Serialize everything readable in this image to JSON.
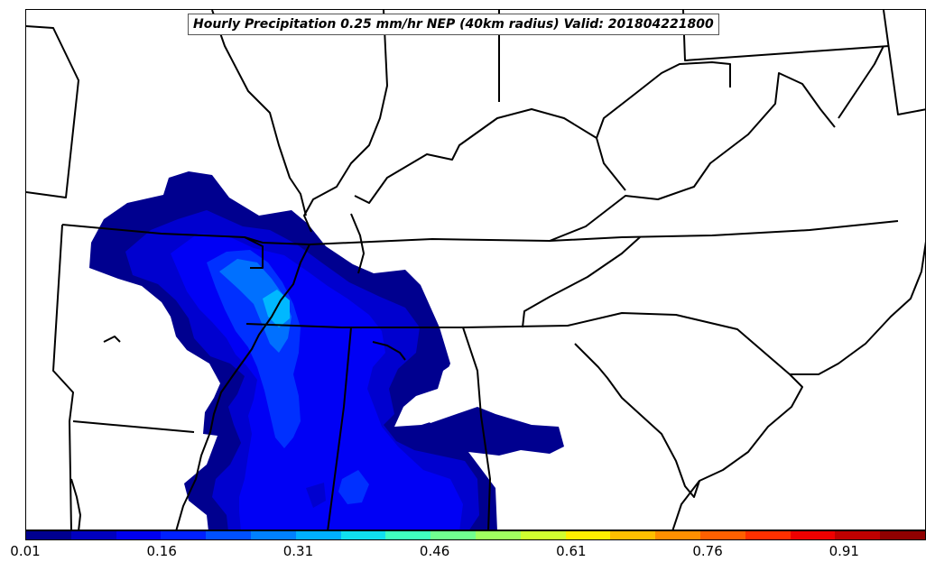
{
  "title": "Hourly Precipitation 0.25 mm/hr NEP (40km radius) Valid: 201804221800",
  "colorbar": {
    "colors": [
      "#00008f",
      "#0000bf",
      "#0000ef",
      "#0020ff",
      "#0050ff",
      "#0080ff",
      "#00b0ff",
      "#10e0ef",
      "#40ffbf",
      "#70ff8f",
      "#a0ff5f",
      "#d0ff2f",
      "#ffef00",
      "#ffbf00",
      "#ff8f00",
      "#ff6000",
      "#ff3000",
      "#ef0000",
      "#bf0000",
      "#8f0000"
    ],
    "tick_labels": [
      "0.01",
      "0.16",
      "0.31",
      "0.46",
      "0.61",
      "0.76",
      "0.91"
    ],
    "min": 0.01,
    "max": 1.0
  },
  "map_colors": {
    "level1": "#00008f",
    "level2": "#0000cf",
    "level3": "#0000f5",
    "level4": "#0030ff",
    "level5": "#0070ff",
    "level6": "#00b8ff",
    "borders": "#000000"
  }
}
